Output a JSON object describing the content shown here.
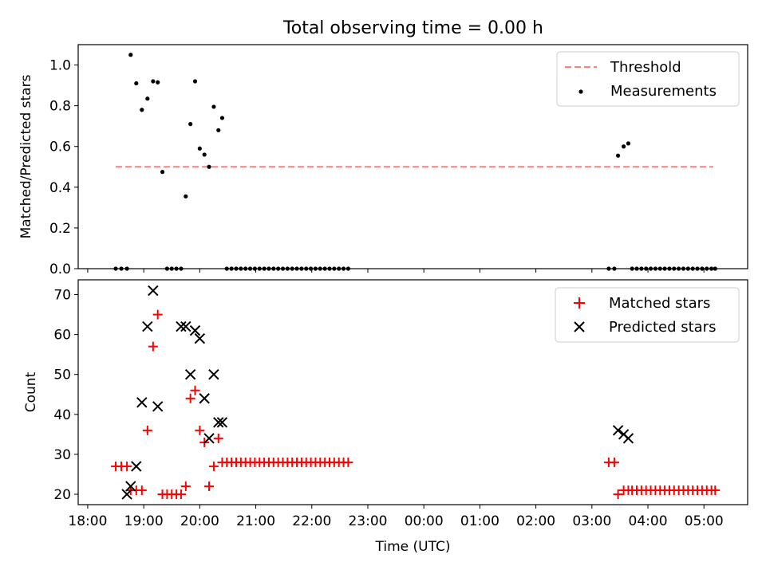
{
  "figure_title": "Total observing time = 0.00 h",
  "colors": {
    "threshold": "#ff7f7f",
    "measurements": "#000000",
    "matched": "#ff0000",
    "predicted": "#000000"
  },
  "chart_data": [
    {
      "type": "scatter",
      "ylabel": "Matched/Predicted stars",
      "ylim": [
        0,
        1.1
      ],
      "yticks": [
        "0.0",
        "0.2",
        "0.4",
        "0.6",
        "0.8",
        "1.0"
      ],
      "xlim_hours": [
        17.83,
        29.78
      ],
      "legend": {
        "position": "top-right",
        "entries": [
          "Threshold",
          "Measurements"
        ]
      },
      "series": [
        {
          "name": "Threshold",
          "type": "line",
          "style": "dashed",
          "x": [
            "18:30",
            "05:10"
          ],
          "values": [
            0.5,
            0.5
          ]
        },
        {
          "name": "Measurements",
          "type": "scatter",
          "marker": "dot",
          "x": [
            "18:30",
            "18:36",
            "18:42",
            "18:46",
            "18:52",
            "18:58",
            "19:04",
            "19:10",
            "19:15",
            "19:20",
            "19:25",
            "19:30",
            "19:35",
            "19:40",
            "19:45",
            "19:50",
            "19:55",
            "20:00",
            "20:05",
            "20:10",
            "20:15",
            "20:20",
            "20:24",
            "20:29",
            "20:34",
            "20:39",
            "20:44",
            "20:49",
            "20:54",
            "20:59",
            "21:04",
            "21:09",
            "21:14",
            "21:19",
            "21:24",
            "21:29",
            "21:34",
            "21:39",
            "21:44",
            "21:49",
            "21:54",
            "21:59",
            "22:04",
            "22:09",
            "22:14",
            "22:19",
            "22:24",
            "22:29",
            "22:34",
            "22:39",
            "03:18",
            "03:24",
            "03:28",
            "03:34",
            "03:39",
            "03:43",
            "03:48",
            "03:53",
            "03:58",
            "04:03",
            "04:08",
            "04:13",
            "04:18",
            "04:23",
            "04:28",
            "04:33",
            "04:38",
            "04:43",
            "04:48",
            "04:53",
            "04:58",
            "05:03",
            "05:08",
            "05:12"
          ],
          "values": [
            0,
            0,
            0,
            1.05,
            0.91,
            0.78,
            0.835,
            0.92,
            0.915,
            0.475,
            0,
            0,
            0,
            0,
            0.355,
            0.71,
            0.92,
            0.59,
            0.56,
            0.5,
            0.795,
            0.68,
            0.74,
            0,
            0,
            0,
            0,
            0,
            0,
            0,
            0,
            0,
            0,
            0,
            0,
            0,
            0,
            0,
            0,
            0,
            0,
            0,
            0,
            0,
            0,
            0,
            0,
            0,
            0,
            0,
            0,
            0,
            0.555,
            0.6,
            0.615,
            0,
            0,
            0,
            0,
            0,
            0,
            0,
            0,
            0,
            0,
            0,
            0,
            0,
            0,
            0,
            0,
            0,
            0,
            0
          ]
        }
      ]
    },
    {
      "type": "scatter",
      "ylabel": "Count",
      "xlabel": "Time (UTC)",
      "ylim": [
        17.4,
        73.7
      ],
      "yticks": [
        "20",
        "30",
        "40",
        "50",
        "60",
        "70"
      ],
      "xticks": [
        "18:00",
        "19:00",
        "20:00",
        "21:00",
        "22:00",
        "23:00",
        "00:00",
        "01:00",
        "02:00",
        "03:00",
        "04:00",
        "05:00"
      ],
      "xlim_hours": [
        17.83,
        29.78
      ],
      "legend": {
        "position": "top-right",
        "entries": [
          "Matched stars",
          "Predicted stars"
        ]
      },
      "series": [
        {
          "name": "Matched stars",
          "marker": "plus",
          "x": [
            "18:30",
            "18:36",
            "18:42",
            "18:46",
            "18:52",
            "18:58",
            "19:04",
            "19:10",
            "19:15",
            "19:20",
            "19:25",
            "19:30",
            "19:35",
            "19:40",
            "19:45",
            "19:50",
            "19:55",
            "20:00",
            "20:05",
            "20:10",
            "20:15",
            "20:20",
            "20:24",
            "20:29",
            "20:34",
            "20:39",
            "20:44",
            "20:49",
            "20:54",
            "20:59",
            "21:04",
            "21:09",
            "21:14",
            "21:19",
            "21:24",
            "21:29",
            "21:34",
            "21:39",
            "21:44",
            "21:49",
            "21:54",
            "21:59",
            "22:04",
            "22:09",
            "22:14",
            "22:19",
            "22:24",
            "22:29",
            "22:34",
            "22:39",
            "03:18",
            "03:24",
            "03:28",
            "03:34",
            "03:39",
            "03:43",
            "03:48",
            "03:53",
            "03:58",
            "04:03",
            "04:08",
            "04:13",
            "04:18",
            "04:23",
            "04:28",
            "04:33",
            "04:38",
            "04:43",
            "04:48",
            "04:53",
            "04:58",
            "05:03",
            "05:08",
            "05:12"
          ],
          "values": [
            27,
            27,
            27,
            21,
            21,
            21,
            36,
            57,
            65,
            20,
            20,
            20,
            20,
            20,
            22,
            44,
            46,
            36,
            33,
            22,
            27,
            34,
            28,
            28,
            28,
            28,
            28,
            28,
            28,
            28,
            28,
            28,
            28,
            28,
            28,
            28,
            28,
            28,
            28,
            28,
            28,
            28,
            28,
            28,
            28,
            28,
            28,
            28,
            28,
            28,
            28,
            28,
            20,
            21,
            21,
            21,
            21,
            21,
            21,
            21,
            21,
            21,
            21,
            21,
            21,
            21,
            21,
            21,
            21,
            21,
            21,
            21,
            21,
            21
          ]
        },
        {
          "name": "Predicted stars",
          "marker": "x",
          "x": [
            "18:42",
            "18:46",
            "18:52",
            "18:58",
            "19:04",
            "19:10",
            "19:15",
            "19:40",
            "19:45",
            "19:50",
            "19:55",
            "20:00",
            "20:05",
            "20:10",
            "20:15",
            "20:20",
            "20:24",
            "03:28",
            "03:34",
            "03:39"
          ],
          "values": [
            20,
            22,
            27,
            43,
            62,
            71,
            42,
            62,
            62,
            50,
            61,
            59,
            44,
            34,
            50,
            38,
            38,
            36,
            35,
            34
          ]
        }
      ]
    }
  ]
}
